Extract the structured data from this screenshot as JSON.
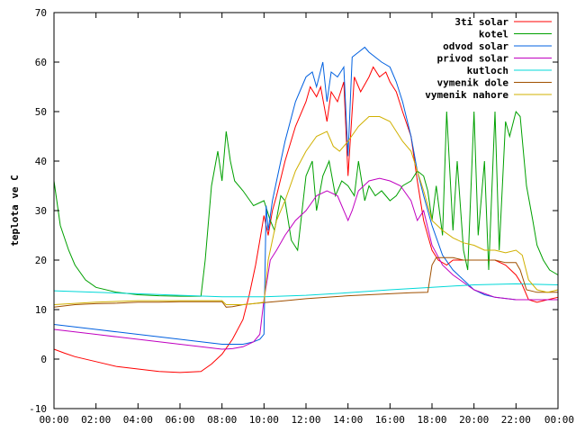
{
  "chart_data": {
    "type": "line",
    "title": "",
    "xlabel": "",
    "ylabel": "teplota ve C",
    "xlim": [
      "00:00",
      "24:00"
    ],
    "ylim": [
      -10,
      70
    ],
    "x_tick_labels": [
      "00:00",
      "02:00",
      "04:00",
      "06:00",
      "08:00",
      "10:00",
      "12:00",
      "14:00",
      "16:00",
      "18:00",
      "20:00",
      "22:00",
      "00:00"
    ],
    "y_tick_values": [
      -10,
      0,
      10,
      20,
      30,
      40,
      50,
      60,
      70
    ],
    "y_tick_labels": [
      "-10",
      "0",
      "10",
      "20",
      "30",
      "40",
      "50",
      "60",
      "70"
    ],
    "grid": false,
    "legend_position": "top-right",
    "series": [
      {
        "name": "3ti solar",
        "color": "#ff0000",
        "x": [
          0,
          0.5,
          1,
          2,
          3,
          4,
          5,
          6,
          7,
          7.5,
          8,
          8.5,
          9,
          9.3,
          9.6,
          9.8,
          10,
          10.1,
          10.2,
          10.4,
          10.6,
          11,
          11.5,
          12,
          12.2,
          12.5,
          12.7,
          13,
          13.2,
          13.5,
          13.8,
          14,
          14.3,
          14.6,
          15,
          15.2,
          15.5,
          15.8,
          16,
          16.3,
          16.6,
          17,
          17.3,
          17.6,
          17.8,
          18,
          18.3,
          18.7,
          19,
          19.5,
          20,
          20.5,
          21,
          21.5,
          22,
          22.3,
          22.6,
          23,
          23.5,
          24
        ],
        "y": [
          2,
          1.2,
          0.5,
          -0.5,
          -1.5,
          -2,
          -2.5,
          -2.7,
          -2.5,
          -1,
          1,
          4,
          8,
          13,
          19,
          24,
          29,
          27,
          25,
          30,
          33,
          40,
          47,
          52,
          55,
          53,
          55,
          48,
          54,
          52,
          56,
          37,
          57,
          54,
          57,
          59,
          57,
          58,
          56,
          54,
          50,
          45,
          36,
          28,
          25,
          22,
          20,
          19,
          20,
          20,
          20,
          20,
          20,
          19,
          17,
          15,
          12,
          11.5,
          12,
          12.5
        ]
      },
      {
        "name": "kotel",
        "color": "#00a000",
        "x": [
          0,
          0.3,
          0.7,
          1,
          1.5,
          2,
          3,
          4,
          5,
          6,
          7,
          7.2,
          7.5,
          7.8,
          8,
          8.2,
          8.4,
          8.6,
          9,
          9.5,
          10,
          10.3,
          10.5,
          10.8,
          11,
          11.3,
          11.6,
          12,
          12.3,
          12.5,
          12.8,
          13.1,
          13.4,
          13.7,
          14,
          14.3,
          14.5,
          14.8,
          15,
          15.3,
          15.6,
          16,
          16.3,
          16.6,
          17,
          17.3,
          17.6,
          17.8,
          18,
          18.2,
          18.5,
          18.7,
          19,
          19.2,
          19.5,
          19.7,
          20,
          20.2,
          20.5,
          20.7,
          21,
          21.2,
          21.5,
          21.7,
          22,
          22.2,
          22.5,
          22.8,
          23,
          23.3,
          23.6,
          24
        ],
        "y": [
          36,
          27,
          22,
          19,
          16,
          14.5,
          13.5,
          13,
          12.8,
          12.7,
          12.7,
          20,
          35,
          42,
          36,
          46,
          40,
          36,
          34,
          31,
          32,
          28,
          26,
          33,
          32,
          24,
          22,
          37,
          40,
          30,
          37,
          40,
          33,
          36,
          35,
          33,
          40,
          32,
          35,
          33,
          34,
          32,
          33,
          35,
          36,
          38,
          37,
          34,
          28,
          35,
          25,
          50,
          26,
          40,
          22,
          18,
          50,
          25,
          40,
          18,
          50,
          22,
          48,
          45,
          50,
          49,
          35,
          28,
          23,
          20,
          18,
          17
        ]
      },
      {
        "name": "odvod solar",
        "color": "#0060e0",
        "x": [
          0,
          1,
          2,
          3,
          4,
          5,
          6,
          7,
          8,
          9,
          9.5,
          9.8,
          10,
          10.1,
          10.2,
          10.4,
          10.6,
          11,
          11.5,
          12,
          12.3,
          12.5,
          12.8,
          13,
          13.2,
          13.5,
          13.8,
          14,
          14.2,
          14.5,
          14.8,
          15,
          15.3,
          15.6,
          16,
          16.3,
          16.6,
          17,
          17.3,
          17.6,
          18,
          18.5,
          19,
          19.5,
          20,
          20.5,
          21,
          22,
          23,
          24
        ],
        "y": [
          7,
          6.5,
          6,
          5.5,
          5,
          4.5,
          4,
          3.5,
          3,
          3,
          3.5,
          4,
          5,
          31,
          26,
          32,
          36,
          44,
          52,
          57,
          58,
          55,
          60,
          52,
          58,
          57,
          59,
          41,
          61,
          62,
          63,
          62,
          61,
          60,
          59,
          56,
          52,
          45,
          38,
          33,
          27,
          21,
          18,
          16,
          14,
          13,
          12.5,
          12,
          12,
          12
        ]
      },
      {
        "name": "privod solar",
        "color": "#c000c0",
        "x": [
          0,
          1,
          2,
          3,
          4,
          5,
          6,
          7,
          8,
          8.5,
          9,
          9.5,
          9.8,
          10,
          10.3,
          10.6,
          11,
          11.5,
          12,
          12.5,
          13,
          13.5,
          14,
          14.2,
          14.5,
          15,
          15.5,
          16,
          16.5,
          17,
          17.3,
          17.6,
          18,
          18.5,
          19,
          20,
          21,
          22,
          23,
          24
        ],
        "y": [
          6,
          5.5,
          5,
          4.5,
          4,
          3.5,
          3,
          2.5,
          2,
          2.1,
          2.5,
          3.5,
          5,
          12,
          20,
          22,
          25,
          28,
          30,
          33,
          34,
          33,
          28,
          30,
          34,
          36,
          36.5,
          36,
          35,
          32,
          28,
          30,
          23,
          19,
          17,
          14,
          12.5,
          12,
          12,
          12
        ]
      },
      {
        "name": "kutloch",
        "color": "#00d8d8",
        "x": [
          0,
          2,
          4,
          6,
          8,
          10,
          12,
          14,
          16,
          18,
          20,
          22,
          24
        ],
        "y": [
          13.8,
          13.5,
          13.2,
          12.9,
          12.6,
          12.6,
          12.9,
          13.4,
          14,
          14.5,
          15,
          15.2,
          15
        ]
      },
      {
        "name": "vymenik dole",
        "color": "#a05000",
        "x": [
          0,
          1,
          2,
          3,
          4,
          5,
          6,
          7,
          8,
          8.2,
          8.5,
          9,
          9.5,
          10,
          11,
          12,
          13,
          14,
          15,
          16,
          17,
          17.8,
          18,
          18.2,
          18.5,
          19,
          19.5,
          20,
          20.5,
          21,
          21.5,
          22,
          22.2,
          22.5,
          23,
          23.5,
          24
        ],
        "y": [
          10.5,
          11,
          11.2,
          11.3,
          11.5,
          11.5,
          11.6,
          11.6,
          11.6,
          10.5,
          10.6,
          11,
          11.2,
          11.4,
          11.8,
          12.2,
          12.5,
          12.8,
          13,
          13.2,
          13.4,
          13.5,
          19,
          20.5,
          20.5,
          20.5,
          20,
          20,
          20,
          20,
          19.5,
          19.5,
          18,
          14,
          13.5,
          13.5,
          13.5
        ]
      },
      {
        "name": "vymenik nahore",
        "color": "#d0b000",
        "x": [
          0,
          2,
          4,
          6,
          8,
          8.2,
          9,
          9.5,
          10,
          10.2,
          10.6,
          11,
          11.5,
          12,
          12.5,
          13,
          13.3,
          13.6,
          14,
          14.5,
          15,
          15.5,
          16,
          16.3,
          16.6,
          17,
          17.3,
          17.6,
          18,
          18.5,
          19,
          19.5,
          20,
          20.5,
          21,
          21.5,
          22,
          22.3,
          22.6,
          23,
          23.5,
          24
        ],
        "y": [
          11,
          11.5,
          11.8,
          11.8,
          11.8,
          11,
          11,
          11.2,
          11.5,
          20,
          28,
          32,
          38,
          42,
          45,
          46,
          43,
          42,
          44,
          47,
          49,
          49,
          48,
          46,
          44,
          42,
          38,
          34,
          28,
          26,
          24.5,
          23.5,
          23,
          22,
          22,
          21.5,
          22,
          21,
          16,
          14,
          13.5,
          14
        ]
      }
    ]
  }
}
